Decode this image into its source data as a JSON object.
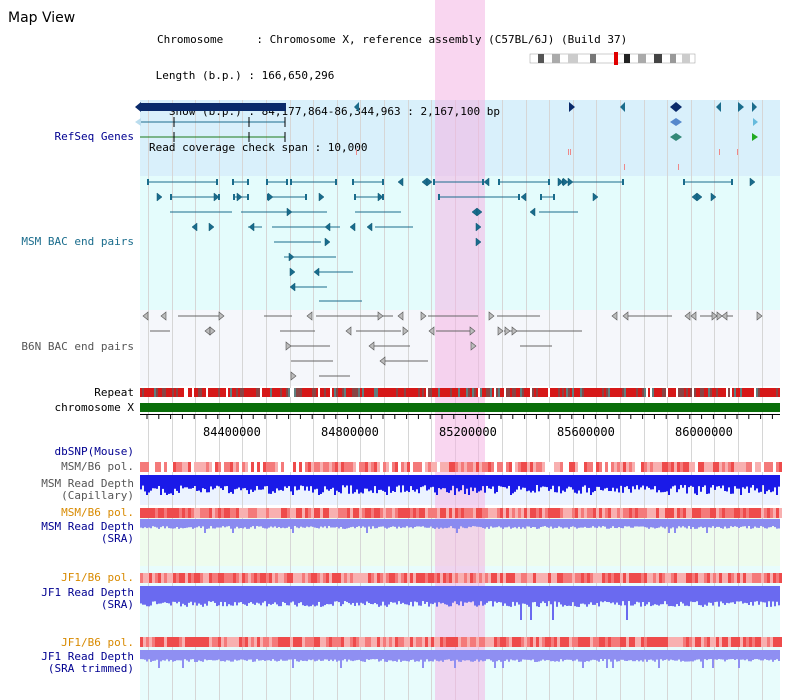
{
  "header": {
    "title": "Map View",
    "info_lines": [
      "Chromosome     : Chromosome X, reference assembly (C57BL/6J) (Build 37)",
      " Length (b.p.) : 166,650,296",
      "   Show (b.p.) : 84,177,864-86,344,963 : 2,167,100 bp",
      "Read coverage check span : 10,000"
    ]
  },
  "tracks": {
    "refseq": "RefSeq Genes",
    "msm_bac": "MSM BAC end pairs",
    "b6n_bac": "B6N BAC end pairs",
    "repeat": "Repeat",
    "chromosome": "chromosome X",
    "dbsnp": "dbSNP(Mouse)",
    "msm_pol1": "MSM/B6 pol.",
    "msm_depth_cap": [
      "MSM Read Depth",
      "(Capillary)"
    ],
    "msm_pol2": "MSM/B6 pol.",
    "msm_depth_sra": [
      "MSM Read Depth",
      "(SRA)"
    ],
    "jf1_pol1": "JF1/B6 pol.",
    "jf1_depth_sra": [
      "JF1 Read Depth",
      "(SRA)"
    ],
    "jf1_pol2": "JF1/B6 pol.",
    "jf1_depth_trim": [
      "JF1 Read Depth",
      "(SRA trimmed)"
    ]
  },
  "axis": {
    "ticks": [
      "84400000",
      "84800000",
      "85200000",
      "85600000",
      "86000000"
    ]
  },
  "colors": {
    "refseq_bg": "#d9f0fb",
    "bac_bg": "#e4fcfc",
    "b6n_bg": "#f5f7fb",
    "msm_label": "#1a6c8c",
    "dark_blue": "#000090",
    "orange": "#d88a00",
    "grey_label": "#555555",
    "chromosome": "#0a6e0a",
    "highlight": "#f4b4e4"
  }
}
